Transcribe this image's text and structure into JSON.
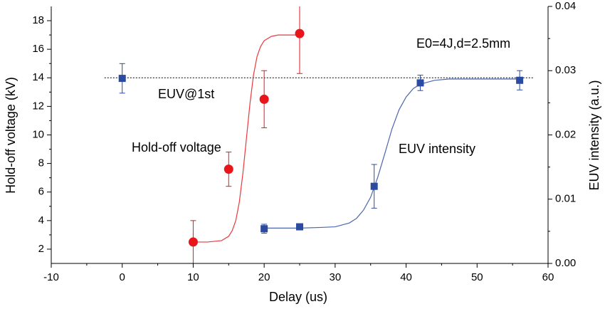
{
  "chart_data": {
    "type": "scatter",
    "x_label": "Delay (us)",
    "y_label": "Hold-off voltage (kV)",
    "y2_label": "EUV intensity (a.u.)",
    "annotation": "E0=4J,d=2.5mm",
    "xlim": [
      -10,
      60
    ],
    "xticks": [
      -10,
      0,
      10,
      20,
      30,
      40,
      50,
      60
    ],
    "ylim": [
      1,
      19
    ],
    "yticks": [
      2,
      4,
      6,
      8,
      10,
      12,
      14,
      16,
      18
    ],
    "y2lim": [
      0,
      0.04
    ],
    "y2ticks": [
      {
        "value": 0,
        "label": "0.00"
      },
      0.01,
      0.02,
      0.03,
      0.04
    ],
    "reference_line": {
      "value": 14,
      "x": [
        -2.5,
        58
      ],
      "label": "EUV@1st"
    },
    "series": [
      {
        "name": "Hold-off voltage",
        "color": "#e8161b",
        "marker": "circle",
        "x": [
          10,
          15,
          20,
          25
        ],
        "values": [
          2.5,
          7.6,
          12.5,
          17.1
        ],
        "errors": [
          1.5,
          1.2,
          2,
          2.8
        ],
        "fit": {
          "x": [
            10,
            12,
            14,
            15,
            15.5,
            16,
            16.5,
            17,
            17.5,
            18,
            18.5,
            19,
            19.5,
            20,
            21,
            22,
            25
          ],
          "values": [
            2.5,
            2.5,
            2.6,
            2.9,
            3.3,
            4.0,
            5.3,
            7.3,
            9.75,
            12.2,
            14.2,
            15.5,
            16.2,
            16.6,
            16.9,
            17.0,
            17.0
          ]
        }
      },
      {
        "name": "EUV intensity",
        "color": "#2b4ba0",
        "marker": "square",
        "axis": "y2",
        "x": [
          0,
          20,
          25,
          35.5,
          42,
          56
        ],
        "values": [
          0.0288,
          0.0054,
          0.0057,
          0.012,
          0.0281,
          0.0285
        ],
        "errors": [
          0.0023,
          0.0007,
          0,
          0.0034,
          0.0012,
          0.0015
        ],
        "fit": {
          "x": [
            20,
            25,
            28,
            30,
            32,
            33,
            34,
            35,
            36,
            37,
            38,
            39,
            40,
            41,
            42,
            44,
            46,
            50,
            56
          ],
          "values": [
            0.0055,
            0.0055,
            0.0056,
            0.0057,
            0.0063,
            0.007,
            0.0083,
            0.0103,
            0.0134,
            0.0171,
            0.0209,
            0.0239,
            0.0259,
            0.0272,
            0.0279,
            0.0285,
            0.0287,
            0.0287,
            0.0287
          ]
        }
      }
    ]
  }
}
